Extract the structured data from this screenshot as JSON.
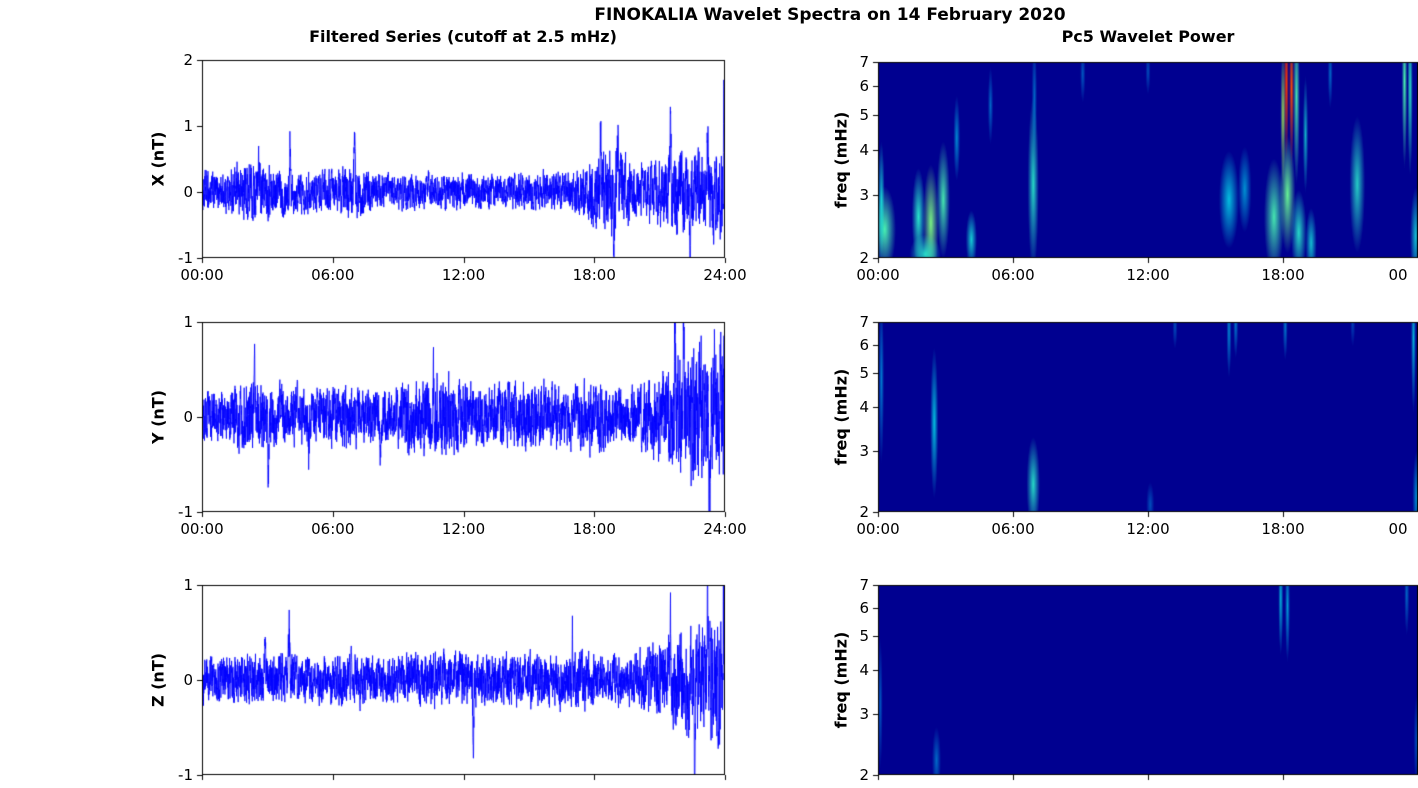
{
  "title": "FINOKALIA Wavelet Spectra on 14 February 2020",
  "colors": {
    "series_line": "#0000FF",
    "spectrogram_background": "#000090",
    "axis": "#000000",
    "text": "#000000"
  },
  "left_column": {
    "title": "Filtered Series (cutoff at 2.5 mHz)",
    "x_tick_labels": [
      "00:00",
      "06:00",
      "12:00",
      "18:00",
      "24:00"
    ],
    "panels": [
      {
        "ylabel": "X (nT)",
        "ylim": [
          -1,
          2
        ],
        "yticks": [
          "2",
          "1",
          "0",
          "-1"
        ]
      },
      {
        "ylabel": "Y (nT)",
        "ylim": [
          -1,
          1
        ],
        "yticks": [
          "1",
          "0",
          "-1"
        ]
      },
      {
        "ylabel": "Z (nT)",
        "ylim": [
          -1,
          1
        ],
        "yticks": [
          "1",
          "0",
          "-1"
        ]
      }
    ]
  },
  "right_column": {
    "title": "Pc5 Wavelet Power",
    "ylabel": "freq (mHz)",
    "x_tick_labels": [
      "00:00",
      "06:00",
      "12:00",
      "18:00",
      "00"
    ],
    "yticks": [
      "7",
      "6",
      "5",
      "4",
      "3",
      "2"
    ],
    "freq_range_mHz": [
      2,
      7
    ],
    "freq_scale": "log"
  },
  "chart_data": [
    {
      "type": "line",
      "series_name": "X filtered series",
      "units": "nT",
      "x_range_hours": [
        0,
        24
      ],
      "x_tick_labels": [
        "00:00",
        "06:00",
        "12:00",
        "18:00",
        "24:00"
      ],
      "ylim": [
        -1,
        2
      ],
      "yticks": [
        2,
        1,
        0,
        -1
      ],
      "line_color": "#0000FF",
      "noise_envelope": {
        "hours_step": 1,
        "amplitude": [
          0.35,
          0.3,
          0.5,
          0.45,
          0.35,
          0.3,
          0.35,
          0.45,
          0.3,
          0.28,
          0.3,
          0.28,
          0.3,
          0.3,
          0.28,
          0.3,
          0.32,
          0.3,
          0.65,
          0.75,
          0.4,
          0.55,
          0.65,
          0.7,
          0.85
        ]
      },
      "spikes": [
        [
          2.6,
          0.6
        ],
        [
          4.05,
          0.9
        ],
        [
          7.0,
          0.92
        ],
        [
          18.3,
          1.2
        ],
        [
          18.9,
          -0.85
        ],
        [
          19.1,
          1.05
        ],
        [
          21.5,
          0.9
        ],
        [
          22.4,
          -0.7
        ],
        [
          23.2,
          1.0
        ],
        [
          23.95,
          1.0
        ]
      ]
    },
    {
      "type": "line",
      "series_name": "Y filtered series",
      "units": "nT",
      "x_range_hours": [
        0,
        24
      ],
      "x_tick_labels": [
        "00:00",
        "06:00",
        "12:00",
        "18:00",
        "24:00"
      ],
      "ylim": [
        -1,
        1
      ],
      "yticks": [
        1,
        0,
        -1
      ],
      "line_color": "#0000FF",
      "noise_envelope": {
        "hours_step": 1,
        "amplitude": [
          0.3,
          0.28,
          0.42,
          0.38,
          0.32,
          0.3,
          0.33,
          0.35,
          0.3,
          0.33,
          0.45,
          0.48,
          0.38,
          0.33,
          0.35,
          0.38,
          0.35,
          0.33,
          0.38,
          0.33,
          0.35,
          0.5,
          0.75,
          0.8,
          0.85
        ]
      },
      "spikes": [
        [
          2.4,
          0.55
        ],
        [
          3.05,
          -0.75
        ],
        [
          4.9,
          -0.55
        ],
        [
          8.2,
          -0.55
        ],
        [
          10.6,
          0.5
        ],
        [
          21.7,
          0.8
        ],
        [
          22.1,
          0.85
        ],
        [
          23.3,
          -0.9
        ],
        [
          23.5,
          0.8
        ],
        [
          23.8,
          0.85
        ]
      ]
    },
    {
      "type": "line",
      "series_name": "Z filtered series",
      "units": "nT",
      "x_range_hours": [
        0,
        24
      ],
      "ylim": [
        -1,
        1
      ],
      "yticks": [
        1,
        0,
        -1
      ],
      "line_color": "#0000FF",
      "noise_envelope": {
        "hours_step": 1,
        "amplitude": [
          0.28,
          0.25,
          0.32,
          0.28,
          0.3,
          0.25,
          0.28,
          0.3,
          0.25,
          0.28,
          0.3,
          0.3,
          0.32,
          0.3,
          0.28,
          0.3,
          0.3,
          0.33,
          0.3,
          0.28,
          0.3,
          0.45,
          0.55,
          0.6,
          0.8
        ]
      },
      "spikes": [
        [
          2.9,
          0.5
        ],
        [
          4.0,
          0.62
        ],
        [
          12.45,
          -0.78
        ],
        [
          17.0,
          0.48
        ],
        [
          21.5,
          0.65
        ],
        [
          22.6,
          -0.6
        ],
        [
          23.2,
          0.75
        ],
        [
          23.95,
          0.95
        ]
      ]
    },
    {
      "type": "heatmap",
      "series_name": "X Pc5 wavelet power",
      "x_range_hours": [
        0,
        24
      ],
      "x_tick_labels": [
        "00:00",
        "06:00",
        "12:00",
        "18:00",
        "00"
      ],
      "freq_range_mHz": [
        2,
        7
      ],
      "freq_scale": "log",
      "yticks": [
        7,
        6,
        5,
        4,
        3,
        2
      ],
      "colormap": "jet",
      "background": "#000090",
      "blob_fields": [
        "t_hours",
        "freq_mHz",
        "radius_t_hours",
        "radius_f_frac",
        "jet_value",
        "alpha"
      ],
      "blobs": [
        [
          0.3,
          2.4,
          0.5,
          0.22,
          0.45,
          0.95
        ],
        [
          0.15,
          2.9,
          0.15,
          0.3,
          0.4,
          0.8
        ],
        [
          1.8,
          2.6,
          0.3,
          0.25,
          0.42,
          0.9
        ],
        [
          2.35,
          2.5,
          0.35,
          0.3,
          0.5,
          0.95
        ],
        [
          2.9,
          2.9,
          0.3,
          0.3,
          0.45,
          0.9
        ],
        [
          2.1,
          2.05,
          0.7,
          0.1,
          0.42,
          0.85
        ],
        [
          3.5,
          4.3,
          0.15,
          0.22,
          0.35,
          0.6
        ],
        [
          4.15,
          2.25,
          0.25,
          0.15,
          0.4,
          0.8
        ],
        [
          5.0,
          5.3,
          0.12,
          0.2,
          0.33,
          0.5
        ],
        [
          6.9,
          3.2,
          0.25,
          0.45,
          0.42,
          0.85
        ],
        [
          6.95,
          5.6,
          0.12,
          0.3,
          0.33,
          0.5
        ],
        [
          9.1,
          6.5,
          0.12,
          0.15,
          0.32,
          0.45
        ],
        [
          12.0,
          6.6,
          0.1,
          0.12,
          0.32,
          0.4
        ],
        [
          15.6,
          2.9,
          0.45,
          0.25,
          0.38,
          0.75
        ],
        [
          16.3,
          3.1,
          0.3,
          0.22,
          0.36,
          0.6
        ],
        [
          17.6,
          2.6,
          0.45,
          0.3,
          0.45,
          0.9
        ],
        [
          18.2,
          3.0,
          0.35,
          0.3,
          0.48,
          0.95
        ],
        [
          18.7,
          2.35,
          0.35,
          0.22,
          0.42,
          0.85
        ],
        [
          18.15,
          6.1,
          0.06,
          0.4,
          0.82,
          1
        ],
        [
          18.38,
          5.9,
          0.06,
          0.4,
          0.8,
          1
        ],
        [
          18.0,
          5.0,
          0.12,
          0.35,
          0.55,
          0.85
        ],
        [
          18.6,
          5.6,
          0.15,
          0.45,
          0.45,
          0.9
        ],
        [
          19.0,
          4.4,
          0.12,
          0.3,
          0.4,
          0.7
        ],
        [
          19.25,
          2.2,
          0.25,
          0.18,
          0.4,
          0.75
        ],
        [
          20.1,
          6.5,
          0.08,
          0.18,
          0.33,
          0.5
        ],
        [
          21.3,
          3.2,
          0.35,
          0.35,
          0.42,
          0.8
        ],
        [
          23.4,
          6.2,
          0.12,
          0.45,
          0.45,
          0.95
        ],
        [
          23.65,
          5.9,
          0.12,
          0.45,
          0.42,
          0.9
        ],
        [
          23.9,
          2.3,
          0.25,
          0.25,
          0.4,
          0.75
        ]
      ]
    },
    {
      "type": "heatmap",
      "series_name": "Y Pc5 wavelet power",
      "x_range_hours": [
        0,
        24
      ],
      "x_tick_labels": [
        "00:00",
        "06:00",
        "12:00",
        "18:00",
        "00"
      ],
      "freq_range_mHz": [
        2,
        7
      ],
      "freq_scale": "log",
      "yticks": [
        7,
        6,
        5,
        4,
        3,
        2
      ],
      "colormap": "jet",
      "background": "#000090",
      "blob_fields": [
        "t_hours",
        "freq_mHz",
        "radius_t_hours",
        "radius_f_frac",
        "jet_value",
        "alpha"
      ],
      "blobs": [
        [
          0.15,
          4.8,
          0.12,
          0.45,
          0.33,
          0.6
        ],
        [
          2.5,
          3.6,
          0.18,
          0.4,
          0.38,
          0.75
        ],
        [
          6.9,
          2.4,
          0.3,
          0.25,
          0.42,
          0.85
        ],
        [
          12.1,
          2.1,
          0.18,
          0.12,
          0.32,
          0.4
        ],
        [
          13.2,
          6.8,
          0.08,
          0.12,
          0.32,
          0.4
        ],
        [
          15.6,
          6.6,
          0.1,
          0.25,
          0.35,
          0.6
        ],
        [
          15.9,
          6.9,
          0.08,
          0.18,
          0.34,
          0.55
        ],
        [
          18.1,
          6.8,
          0.1,
          0.18,
          0.34,
          0.55
        ],
        [
          21.1,
          6.9,
          0.07,
          0.12,
          0.31,
          0.35
        ],
        [
          23.8,
          6.3,
          0.1,
          0.4,
          0.38,
          0.7
        ],
        [
          23.95,
          2.2,
          0.2,
          0.25,
          0.36,
          0.65
        ]
      ]
    },
    {
      "type": "heatmap",
      "series_name": "Z Pc5 wavelet power",
      "x_range_hours": [
        0,
        24
      ],
      "freq_range_mHz": [
        2,
        7
      ],
      "freq_scale": "log",
      "yticks": [
        7,
        6,
        5,
        4,
        3,
        2
      ],
      "colormap": "jet",
      "background": "#000090",
      "blob_fields": [
        "t_hours",
        "freq_mHz",
        "radius_t_hours",
        "radius_f_frac",
        "jet_value",
        "alpha"
      ],
      "blobs": [
        [
          0.1,
          3.2,
          0.1,
          0.35,
          0.32,
          0.45
        ],
        [
          2.6,
          2.2,
          0.2,
          0.18,
          0.33,
          0.5
        ],
        [
          17.9,
          6.4,
          0.08,
          0.3,
          0.38,
          0.7
        ],
        [
          18.2,
          6.1,
          0.08,
          0.3,
          0.36,
          0.65
        ],
        [
          23.5,
          6.6,
          0.08,
          0.22,
          0.33,
          0.5
        ],
        [
          23.95,
          2.5,
          0.15,
          0.25,
          0.32,
          0.45
        ]
      ]
    }
  ]
}
